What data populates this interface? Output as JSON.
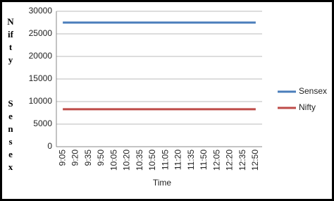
{
  "chart_data": {
    "type": "line",
    "y_label": [
      "Nifty",
      "Sensex"
    ],
    "x_label": "Time",
    "categories": [
      "9:05",
      "9:20",
      "9:35",
      "9:50",
      "10:05",
      "10:20",
      "10:35",
      "10:50",
      "11:05",
      "11:20",
      "11:35",
      "11:50",
      "12:05",
      "12:20",
      "12:35",
      "12:50"
    ],
    "series": [
      {
        "name": "Sensex",
        "color": "#4a7ebb",
        "values": [
          27500,
          27500,
          27500,
          27500,
          27500,
          27500,
          27500,
          27500,
          27500,
          27500,
          27500,
          27500,
          27500,
          27500,
          27500,
          27500
        ]
      },
      {
        "name": "Nifty",
        "color": "#be4b48",
        "values": [
          8300,
          8300,
          8300,
          8300,
          8300,
          8300,
          8300,
          8300,
          8300,
          8300,
          8300,
          8300,
          8300,
          8300,
          8300,
          8300
        ]
      }
    ],
    "ylim": [
      0,
      30000
    ],
    "yticks": [
      0,
      5000,
      10000,
      15000,
      20000,
      25000,
      30000
    ],
    "grid": true,
    "legend": "right"
  }
}
